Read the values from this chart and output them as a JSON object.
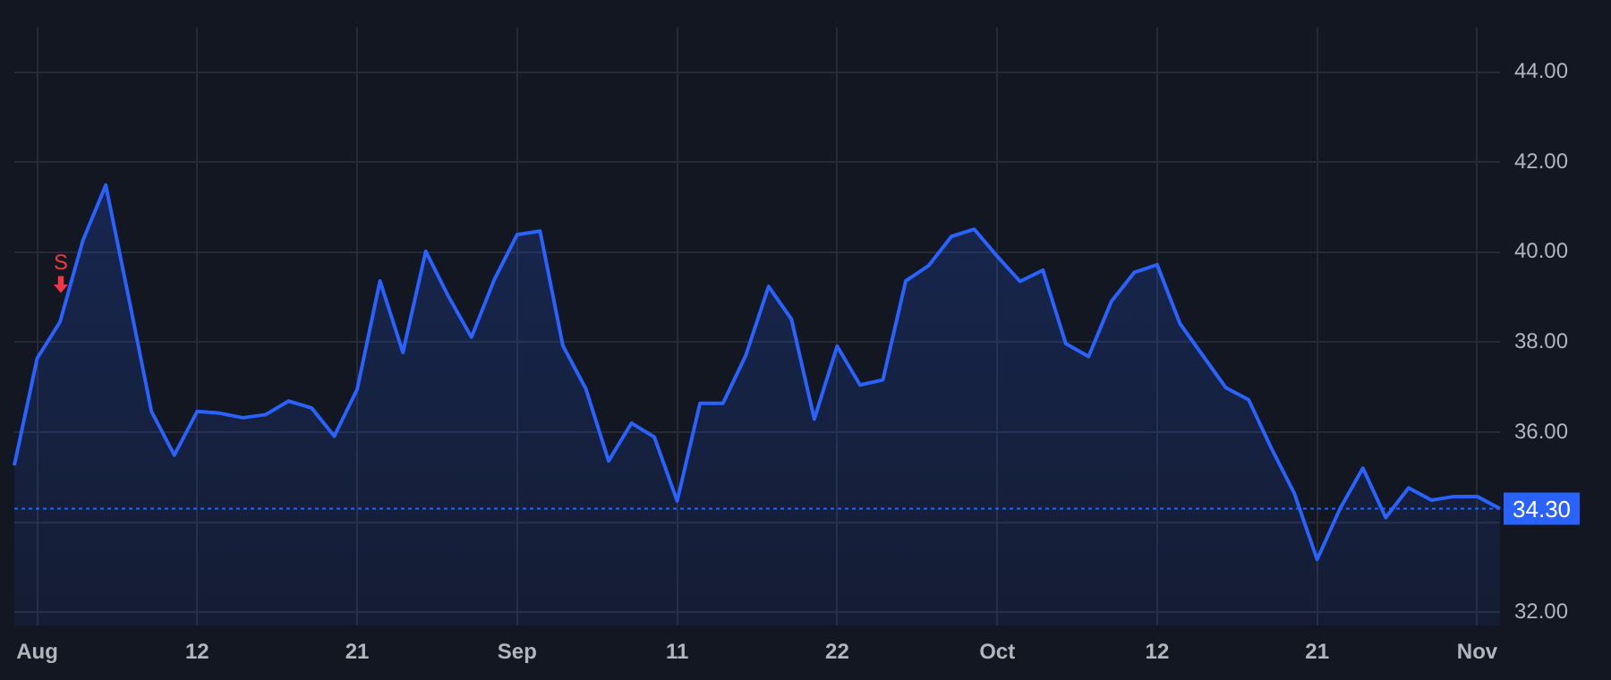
{
  "chart_data": {
    "type": "area",
    "categories": [
      null,
      "Aug",
      null,
      null,
      null,
      null,
      null,
      null,
      "12",
      null,
      null,
      null,
      null,
      null,
      null,
      "21",
      null,
      null,
      null,
      null,
      null,
      null,
      "Sep",
      null,
      null,
      null,
      null,
      null,
      null,
      "11",
      null,
      null,
      null,
      null,
      null,
      null,
      "22",
      null,
      null,
      null,
      null,
      null,
      null,
      "Oct",
      null,
      null,
      null,
      null,
      null,
      null,
      "12",
      null,
      null,
      null,
      null,
      null,
      null,
      "21",
      null,
      null,
      null,
      null,
      null,
      null,
      "Nov",
      null
    ],
    "series": [
      {
        "color": "#2962ff",
        "values": [
          35.26,
          37.64,
          38.45,
          40.26,
          41.49,
          39.0,
          36.46,
          35.49,
          36.46,
          36.42,
          36.32,
          36.39,
          36.69,
          36.54,
          35.91,
          36.95,
          39.36,
          37.77,
          40.02,
          39.01,
          38.11,
          39.39,
          40.39,
          40.47,
          37.92,
          36.97,
          35.36,
          36.2,
          35.89,
          34.47,
          36.64,
          36.64,
          37.7,
          39.24,
          38.51,
          36.29,
          37.91,
          37.05,
          37.16,
          39.36,
          39.7,
          40.35,
          40.51,
          39.91,
          39.35,
          39.6,
          37.97,
          37.68,
          38.91,
          39.55,
          39.72,
          38.41,
          37.7,
          36.99,
          36.72,
          35.64,
          34.64,
          33.17,
          34.3,
          35.2,
          34.1,
          34.76,
          34.49,
          34.57,
          34.57,
          34.3
        ]
      }
    ],
    "ylim": [
      31.7,
      45.0
    ],
    "yticks": [
      {
        "value": 32,
        "label": "32.00"
      },
      {
        "value": 34,
        "label": null
      },
      {
        "value": 36,
        "label": "36.00"
      },
      {
        "value": 38,
        "label": "38.00"
      },
      {
        "value": 40,
        "label": "40.00"
      },
      {
        "value": 42,
        "label": "42.00"
      },
      {
        "value": 44,
        "label": "44.00"
      }
    ],
    "ref_lines": [
      {
        "axis": "y",
        "value": 34.3,
        "label": "34.30",
        "color": "#2962ff",
        "line_style": "dotted"
      }
    ],
    "annotations": [
      "S"
    ],
    "grid": true,
    "legend": false,
    "marker": "none",
    "line_style": "solid"
  }
}
